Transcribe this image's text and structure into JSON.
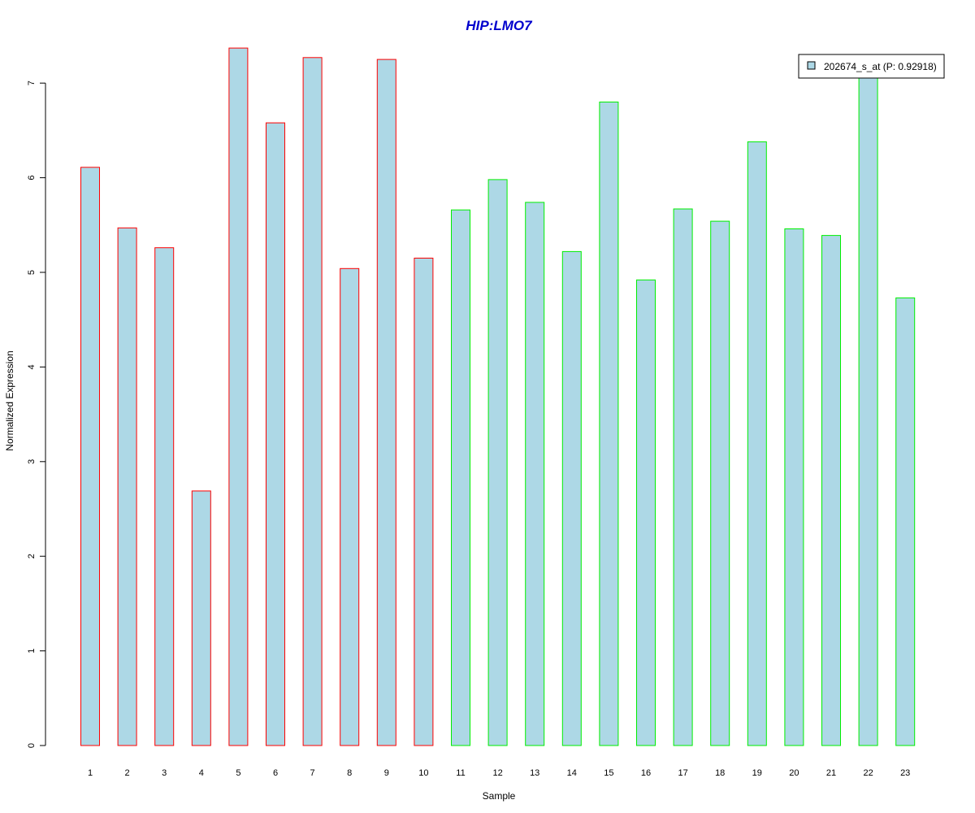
{
  "chart_data": {
    "type": "bar",
    "title": "HIP:LMO7",
    "xlabel": "Sample",
    "ylabel": "Normalized Expression",
    "categories": [
      "1",
      "2",
      "3",
      "4",
      "5",
      "6",
      "7",
      "8",
      "9",
      "10",
      "11",
      "12",
      "13",
      "14",
      "15",
      "16",
      "17",
      "18",
      "19",
      "20",
      "21",
      "22",
      "23"
    ],
    "series": [
      {
        "name": "202674_s_at (P: 0.92918)",
        "values": [
          6.11,
          5.47,
          5.26,
          2.69,
          7.37,
          6.58,
          7.27,
          5.04,
          7.25,
          5.15,
          5.66,
          5.98,
          5.74,
          5.22,
          6.8,
          4.92,
          5.67,
          5.54,
          6.38,
          5.46,
          5.39,
          7.08,
          4.73
        ]
      }
    ],
    "groups": [
      {
        "samples": [
          1,
          10
        ],
        "border_color": "#ff0000"
      },
      {
        "samples": [
          11,
          23
        ],
        "border_color": "#00ee00"
      }
    ],
    "yticks": [
      "0",
      "1",
      "2",
      "3",
      "4",
      "5",
      "6",
      "7"
    ],
    "ylim": [
      0,
      7.37
    ],
    "grid": false,
    "legend_position": "top-right",
    "colors": {
      "bar_fill": "#add8e6",
      "title": "#0000cd",
      "axis": "#000000"
    }
  }
}
